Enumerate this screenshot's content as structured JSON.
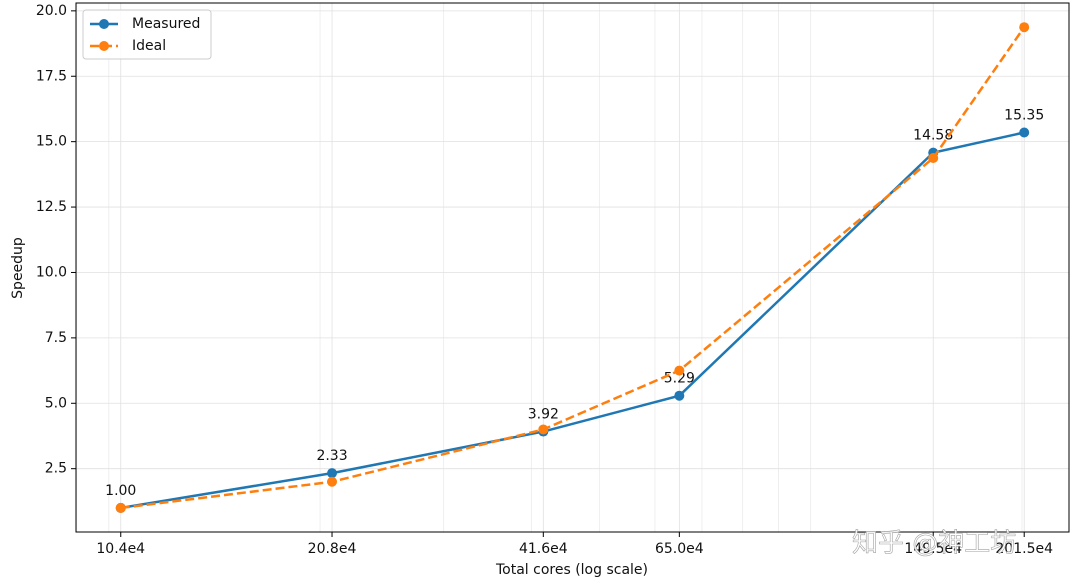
{
  "chart_data": {
    "type": "line",
    "x_label": "Total cores (log scale)",
    "y_label": "Speedup",
    "x": [
      104000,
      208000,
      416000,
      650000,
      1495000,
      2015000
    ],
    "series": [
      {
        "name": "Measured",
        "color": "#1f77b4",
        "dashed": false,
        "values": [
          1.0,
          2.33,
          3.92,
          5.29,
          14.58,
          15.35
        ],
        "value_labels": [
          "1.00",
          "2.33",
          "3.92",
          "5.29",
          "14.58",
          "15.35"
        ]
      },
      {
        "name": "Ideal",
        "color": "#ff7f0e",
        "dashed": true,
        "values": [
          1.0,
          2.0,
          4.0,
          6.25,
          14.375,
          19.375
        ]
      }
    ],
    "x_log": true,
    "xlim": [
      89800,
      2334000
    ],
    "xticks": [
      {
        "value": 104000,
        "label": "10.4e4"
      },
      {
        "value": 208000,
        "label": "20.8e4"
      },
      {
        "value": 416000,
        "label": "41.6e4"
      },
      {
        "value": 650000,
        "label": "65.0e4"
      },
      {
        "value": 1495000,
        "label": "149.5e4"
      },
      {
        "value": 2015000,
        "label": "201.5e4"
      }
    ],
    "ylim": [
      0.08,
      20.3
    ],
    "yticks": [
      2.5,
      {
        "value": 5,
        "label": "5.0"
      },
      7.5,
      {
        "value": 10,
        "label": "10.0"
      },
      12.5,
      {
        "value": 15,
        "label": "15.0"
      },
      17.5,
      {
        "value": 20,
        "label": "20.0"
      }
    ],
    "grid": true,
    "legend": "upper-left",
    "watermark": "知乎 @神工坊"
  }
}
